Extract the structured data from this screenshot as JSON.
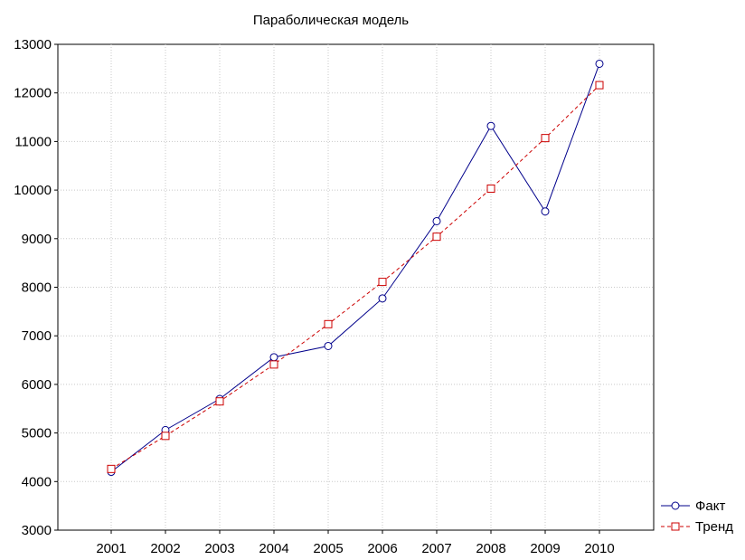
{
  "chart_data": {
    "type": "line",
    "title": "Параболическая модель",
    "xlabel": "",
    "ylabel": "",
    "categories": [
      "2001",
      "2002",
      "2003",
      "2004",
      "2005",
      "2006",
      "2007",
      "2008",
      "2009",
      "2010"
    ],
    "ylim": [
      3000,
      13000
    ],
    "yticks": [
      3000,
      4000,
      5000,
      6000,
      7000,
      8000,
      9000,
      10000,
      11000,
      12000,
      13000
    ],
    "grid": true,
    "legend": "bottom-right",
    "series": [
      {
        "name": "Факт",
        "values": [
          4200,
          5060,
          5700,
          6560,
          6790,
          7770,
          9360,
          11320,
          9560,
          12600
        ],
        "color": "#00008b",
        "marker": "circle",
        "line": "solid"
      },
      {
        "name": "Тренд",
        "values": [
          4260,
          4940,
          5650,
          6410,
          7240,
          8110,
          9040,
          10030,
          11070,
          12160
        ],
        "color": "#cc0000",
        "marker": "square",
        "line": "dashed"
      }
    ]
  }
}
